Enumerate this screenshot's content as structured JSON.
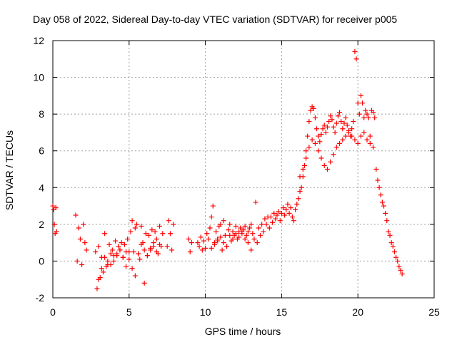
{
  "chart_data": {
    "type": "scatter",
    "title": "Day 058 of 2022, Sidereal Day-to-day VTEC variation (SDTVAR) for receiver p005",
    "xlabel": "GPS time / hours",
    "ylabel": "SDTVAR / TECUs",
    "xlim": [
      0,
      25
    ],
    "ylim": [
      -2,
      12
    ],
    "xticks": [
      0,
      5,
      10,
      15,
      20,
      25
    ],
    "yticks": [
      -2,
      0,
      2,
      4,
      6,
      8,
      10,
      12
    ],
    "xtick_labels": [
      "0",
      "5",
      "10",
      "15",
      "20",
      "25"
    ],
    "ytick_labels": [
      "-2",
      "0",
      "2",
      "4",
      "6",
      "8",
      "10",
      "12"
    ],
    "grid": true,
    "marker": "+",
    "color": "#ff0000",
    "series": [
      {
        "name": "SDTVAR",
        "x": [
          0.0,
          0.05,
          0.1,
          0.15,
          0.2,
          0.25,
          1.5,
          1.6,
          1.7,
          1.8,
          1.9,
          2.0,
          2.1,
          2.2,
          2.8,
          2.9,
          3.0,
          3.1,
          3.2,
          3.3,
          3.4,
          3.5,
          3.6,
          3.7,
          3.8,
          3.9,
          4.0,
          4.1,
          4.2,
          4.3,
          4.4,
          4.5,
          4.6,
          4.7,
          4.8,
          4.9,
          5.0,
          5.1,
          5.2,
          5.3,
          5.4,
          5.5,
          5.6,
          5.7,
          5.8,
          5.9,
          6.0,
          6.1,
          6.2,
          6.3,
          6.4,
          6.5,
          6.6,
          6.7,
          6.8,
          6.9,
          7.0,
          7.1,
          7.2,
          7.5,
          7.6,
          7.7,
          7.8,
          7.9,
          8.9,
          9.0,
          9.1,
          9.5,
          9.6,
          9.7,
          9.8,
          9.9,
          10.0,
          10.1,
          10.2,
          10.3,
          10.4,
          10.5,
          10.6,
          10.7,
          10.8,
          10.9,
          11.0,
          11.1,
          11.2,
          11.3,
          11.4,
          11.5,
          11.6,
          11.7,
          11.8,
          11.9,
          12.0,
          12.1,
          12.2,
          12.3,
          12.4,
          12.5,
          12.6,
          12.7,
          12.8,
          12.9,
          13.0,
          13.1,
          13.2,
          13.3,
          13.4,
          13.5,
          13.6,
          13.7,
          13.8,
          13.9,
          14.0,
          14.1,
          14.2,
          14.3,
          14.4,
          14.5,
          14.6,
          14.7,
          14.8,
          14.9,
          15.0,
          15.1,
          15.2,
          15.3,
          15.4,
          15.5,
          15.6,
          15.7,
          15.8,
          15.9,
          16.0,
          16.1,
          16.2,
          16.3,
          16.4,
          16.5,
          16.6,
          16.7,
          16.8,
          16.9,
          17.0,
          17.1,
          17.2,
          17.3,
          17.4,
          17.5,
          17.6,
          17.7,
          17.8,
          17.9,
          18.0,
          18.1,
          18.2,
          18.3,
          18.4,
          18.5,
          18.6,
          18.7,
          18.8,
          18.9,
          19.0,
          19.1,
          19.2,
          19.3,
          19.4,
          19.5,
          19.6,
          19.7,
          19.8,
          19.9,
          20.0,
          20.1,
          20.2,
          20.3,
          20.4,
          20.5,
          20.6,
          20.7,
          20.8,
          20.9,
          21.0,
          21.1,
          21.2,
          21.3,
          21.4,
          21.5,
          21.6,
          21.7,
          21.8,
          21.9,
          22.0,
          22.1,
          22.2,
          22.3,
          22.4,
          22.5,
          22.6,
          22.7,
          22.8,
          22.9,
          16.2,
          16.4,
          16.6,
          16.8,
          17.0,
          17.2,
          17.4,
          17.6,
          17.8,
          18.0,
          18.2,
          18.4,
          18.6,
          18.8,
          19.0,
          19.2,
          19.4,
          19.6,
          19.8,
          20.0,
          20.2,
          20.4,
          20.6,
          20.8,
          21.0,
          10.4,
          10.6,
          10.8,
          11.0,
          11.2,
          11.4,
          11.6,
          11.8,
          12.0,
          12.2,
          12.4,
          12.6,
          12.8,
          13.0,
          3.0,
          3.2,
          3.4,
          3.6,
          3.8,
          4.0,
          4.2,
          4.4,
          4.6,
          4.8,
          5.0,
          5.2,
          5.4,
          5.6,
          5.8,
          6.0,
          6.2,
          6.4,
          6.6,
          6.8,
          7.0
        ],
        "y": [
          3.0,
          2.8,
          2.0,
          1.5,
          2.9,
          1.6,
          2.5,
          0.0,
          1.8,
          1.2,
          -0.2,
          2.0,
          1.0,
          0.6,
          0.5,
          -1.5,
          0.8,
          -0.9,
          0.2,
          -0.6,
          1.5,
          -0.3,
          0.0,
          0.9,
          -0.2,
          0.6,
          0.3,
          1.1,
          0.4,
          0.8,
          0.6,
          1.0,
          0.2,
          0.9,
          -0.3,
          1.2,
          0.5,
          1.6,
          2.2,
          0.5,
          1.8,
          2.0,
          0.4,
          0.1,
          1.9,
          1.0,
          -1.2,
          1.5,
          0.3,
          1.4,
          0.6,
          1.7,
          0.8,
          1.6,
          1.2,
          0.4,
          1.9,
          0.8,
          1.5,
          0.8,
          2.2,
          1.5,
          0.6,
          2.0,
          1.2,
          0.5,
          1.0,
          1.0,
          0.8,
          1.3,
          0.6,
          1.1,
          0.7,
          1.5,
          1.2,
          1.8,
          2.4,
          3.0,
          1.0,
          1.6,
          1.2,
          1.9,
          2.0,
          0.6,
          2.2,
          1.4,
          0.8,
          1.7,
          2.0,
          1.1,
          1.6,
          1.4,
          1.9,
          1.2,
          1.6,
          1.8,
          1.5,
          1.7,
          1.9,
          1.4,
          1.6,
          1.8,
          2.0,
          1.5,
          1.2,
          3.2,
          1.0,
          1.8,
          1.4,
          2.0,
          1.6,
          2.3,
          2.0,
          2.4,
          1.8,
          2.4,
          2.1,
          2.6,
          2.3,
          2.5,
          2.7,
          2.2,
          2.6,
          2.9,
          2.5,
          2.8,
          3.1,
          2.6,
          2.9,
          2.4,
          2.2,
          2.8,
          3.1,
          3.4,
          3.8,
          4.0,
          4.6,
          5.2,
          6.0,
          6.8,
          7.6,
          8.2,
          8.4,
          8.3,
          7.8,
          7.2,
          6.8,
          6.5,
          6.9,
          7.2,
          7.4,
          7.0,
          7.3,
          7.6,
          7.9,
          7.7,
          7.3,
          7.0,
          7.5,
          7.9,
          8.1,
          7.6,
          7.2,
          7.5,
          7.8,
          7.4,
          7.1,
          6.8,
          7.2,
          7.6,
          11.4,
          11.0,
          8.6,
          8.0,
          9.0,
          8.6,
          7.8,
          8.2,
          8.0,
          7.8,
          6.8,
          8.2,
          8.1,
          7.8,
          5.0,
          4.4,
          4.0,
          3.6,
          3.2,
          3.0,
          2.6,
          2.2,
          1.6,
          1.4,
          1.0,
          0.8,
          0.5,
          0.2,
          0.0,
          -0.3,
          -0.5,
          -0.7,
          4.6,
          5.0,
          5.6,
          6.2,
          6.6,
          6.4,
          6.0,
          5.6,
          5.2,
          5.0,
          5.4,
          5.8,
          6.2,
          6.4,
          6.6,
          6.8,
          7.0,
          6.8,
          6.6,
          6.4,
          6.8,
          7.0,
          6.6,
          6.4,
          6.2,
          0.7,
          0.9,
          1.1,
          1.3,
          1.0,
          0.8,
          1.4,
          1.2,
          1.5,
          1.3,
          1.6,
          1.2,
          1.0,
          0.6,
          -1.0,
          -0.4,
          0.2,
          -0.2,
          0.4,
          0.0,
          0.3,
          0.6,
          0.2,
          0.5,
          0.1,
          -0.4,
          -0.8,
          0.4,
          0.9,
          0.6,
          0.3,
          0.7,
          1.0,
          0.5,
          0.9
        ]
      }
    ]
  }
}
